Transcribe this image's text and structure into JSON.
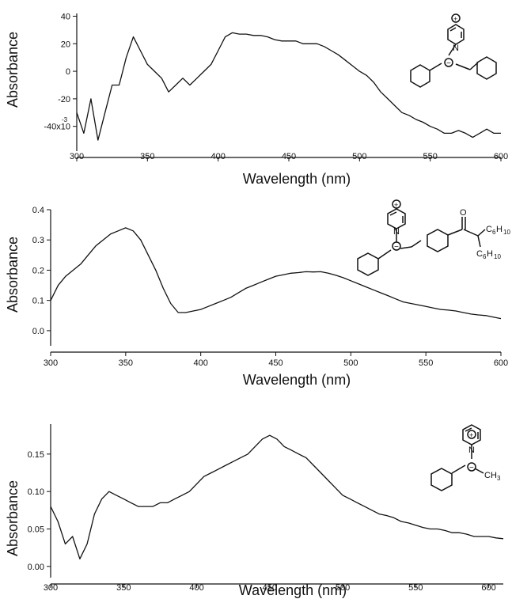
{
  "chart_data": [
    {
      "type": "line",
      "xlabel": "Wavelength (nm)",
      "ylabel": "Absorbance",
      "xlim": [
        300,
        600
      ],
      "ylim": [
        -0.058,
        0.042
      ],
      "xticks": [
        300,
        350,
        400,
        450,
        500,
        550,
        600
      ],
      "xtick_labels": [
        "300",
        "350",
        "400",
        "450",
        "500",
        "550",
        "600"
      ],
      "yticks": [
        -0.04,
        -0.02,
        0.0,
        0.02,
        0.04
      ],
      "ytick_labels": [
        "-40x10",
        "-20",
        "0",
        "20",
        "40"
      ],
      "ytick_exponent": "-3",
      "structure_labels": [
        "N",
        "+",
        "−"
      ],
      "series": [
        {
          "x": [
            300,
            305,
            310,
            315,
            320,
            325,
            330,
            335,
            340,
            345,
            350,
            355,
            360,
            365,
            370,
            375,
            380,
            385,
            390,
            395,
            400,
            405,
            410,
            415,
            420,
            425,
            430,
            435,
            440,
            445,
            450,
            455,
            460,
            465,
            470,
            475,
            480,
            485,
            490,
            495,
            500,
            505,
            510,
            515,
            520,
            525,
            530,
            535,
            540,
            545,
            550,
            555,
            560,
            565,
            570,
            575,
            580,
            585,
            590,
            595,
            600
          ],
          "y": [
            -0.03,
            -0.045,
            -0.02,
            -0.05,
            -0.03,
            -0.01,
            -0.01,
            0.01,
            0.025,
            0.015,
            0.005,
            0.0,
            -0.005,
            -0.015,
            -0.01,
            -0.005,
            -0.01,
            -0.005,
            0.0,
            0.005,
            0.015,
            0.025,
            0.028,
            0.027,
            0.027,
            0.026,
            0.026,
            0.025,
            0.023,
            0.022,
            0.022,
            0.022,
            0.02,
            0.02,
            0.02,
            0.018,
            0.015,
            0.012,
            0.008,
            0.004,
            0.0,
            -0.003,
            -0.008,
            -0.015,
            -0.02,
            -0.025,
            -0.03,
            -0.032,
            -0.035,
            -0.037,
            -0.04,
            -0.042,
            -0.045,
            -0.045,
            -0.043,
            -0.045,
            -0.048,
            -0.045,
            -0.042,
            -0.045,
            -0.045
          ]
        }
      ]
    },
    {
      "type": "line",
      "xlabel": "Wavelength (nm)",
      "ylabel": "Absorbance",
      "xlim": [
        300,
        600
      ],
      "ylim": [
        -0.05,
        0.4
      ],
      "xticks": [
        300,
        350,
        400,
        450,
        500,
        550,
        600
      ],
      "xtick_labels": [
        "300",
        "350",
        "400",
        "450",
        "500",
        "550",
        "600"
      ],
      "yticks": [
        0.0,
        0.1,
        0.2,
        0.3,
        0.4
      ],
      "ytick_labels": [
        "0.0",
        "0.1",
        "0.2",
        "0.3",
        "0.4"
      ],
      "structure_labels": [
        "N",
        "+",
        "−",
        "O",
        "C",
        "6",
        "H",
        "10"
      ],
      "series": [
        {
          "x": [
            300,
            305,
            310,
            315,
            320,
            325,
            330,
            335,
            340,
            345,
            350,
            355,
            360,
            365,
            370,
            375,
            380,
            385,
            390,
            395,
            400,
            405,
            410,
            415,
            420,
            425,
            430,
            435,
            440,
            445,
            450,
            455,
            460,
            465,
            470,
            475,
            480,
            485,
            490,
            495,
            500,
            505,
            510,
            515,
            520,
            525,
            530,
            535,
            540,
            545,
            550,
            555,
            560,
            565,
            570,
            575,
            580,
            585,
            590,
            595,
            600
          ],
          "y": [
            0.1,
            0.15,
            0.18,
            0.2,
            0.22,
            0.25,
            0.28,
            0.3,
            0.32,
            0.33,
            0.34,
            0.33,
            0.3,
            0.25,
            0.2,
            0.14,
            0.09,
            0.06,
            0.06,
            0.065,
            0.07,
            0.08,
            0.09,
            0.1,
            0.11,
            0.125,
            0.14,
            0.15,
            0.16,
            0.17,
            0.18,
            0.185,
            0.19,
            0.192,
            0.195,
            0.194,
            0.195,
            0.19,
            0.183,
            0.175,
            0.165,
            0.155,
            0.145,
            0.135,
            0.125,
            0.115,
            0.105,
            0.095,
            0.09,
            0.085,
            0.08,
            0.075,
            0.07,
            0.068,
            0.065,
            0.06,
            0.055,
            0.052,
            0.05,
            0.045,
            0.04
          ]
        }
      ]
    },
    {
      "type": "line",
      "xlabel": "Wavelength (nm)",
      "ylabel": "Absorbance",
      "xlim": [
        300,
        610
      ],
      "ylim": [
        -0.015,
        0.19
      ],
      "xticks": [
        300,
        350,
        400,
        450,
        500,
        550,
        600
      ],
      "xtick_labels": [
        "300",
        "350",
        "400",
        "450",
        "500",
        "550",
        "600"
      ],
      "yticks": [
        0.0,
        0.05,
        0.1,
        0.15
      ],
      "ytick_labels": [
        "0.00",
        "0.05",
        "0.10",
        "0.15"
      ],
      "structure_labels": [
        "N",
        "+",
        "−",
        "CH",
        "3"
      ],
      "series": [
        {
          "x": [
            300,
            305,
            310,
            315,
            320,
            325,
            330,
            335,
            340,
            345,
            350,
            355,
            360,
            365,
            370,
            375,
            380,
            385,
            390,
            395,
            400,
            405,
            410,
            415,
            420,
            425,
            430,
            435,
            440,
            445,
            450,
            455,
            460,
            465,
            470,
            475,
            480,
            485,
            490,
            495,
            500,
            505,
            510,
            515,
            520,
            525,
            530,
            535,
            540,
            545,
            550,
            555,
            560,
            565,
            570,
            575,
            580,
            585,
            590,
            595,
            600,
            605,
            610
          ],
          "y": [
            0.08,
            0.06,
            0.03,
            0.04,
            0.01,
            0.03,
            0.07,
            0.09,
            0.1,
            0.095,
            0.09,
            0.085,
            0.08,
            0.08,
            0.08,
            0.085,
            0.085,
            0.09,
            0.095,
            0.1,
            0.11,
            0.12,
            0.125,
            0.13,
            0.135,
            0.14,
            0.145,
            0.15,
            0.16,
            0.17,
            0.175,
            0.17,
            0.16,
            0.155,
            0.15,
            0.145,
            0.135,
            0.125,
            0.115,
            0.105,
            0.095,
            0.09,
            0.085,
            0.08,
            0.075,
            0.07,
            0.068,
            0.065,
            0.06,
            0.058,
            0.055,
            0.052,
            0.05,
            0.05,
            0.048,
            0.045,
            0.045,
            0.043,
            0.04,
            0.04,
            0.04,
            0.038,
            0.037
          ]
        }
      ]
    }
  ]
}
